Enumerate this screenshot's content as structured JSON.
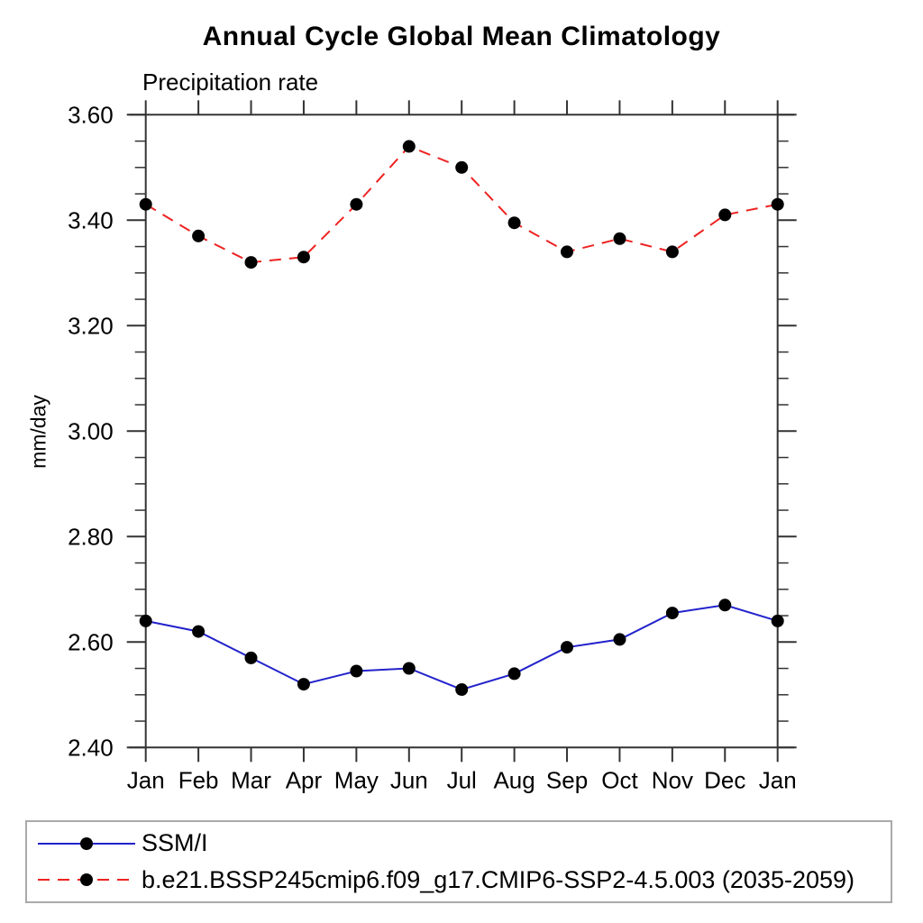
{
  "chart_data": {
    "type": "line",
    "title": "Annual Cycle Global Mean Climatology",
    "subtitle": "Precipitation rate",
    "ylabel": "mm/day",
    "x_tick_labels": [
      "Jan",
      "Feb",
      "Mar",
      "Apr",
      "May",
      "Jun",
      "Jul",
      "Aug",
      "Sep",
      "Oct",
      "Nov",
      "Dec",
      "Jan"
    ],
    "y_axis": {
      "min": 2.4,
      "max": 3.6,
      "major_step": 0.2,
      "minor_step": 0.05,
      "major_tick_labels": [
        "2.40",
        "2.60",
        "2.80",
        "3.00",
        "3.20",
        "3.40",
        "3.60"
      ]
    },
    "grid": false,
    "legend_position": "bottom",
    "series": [
      {
        "name": "SSM/I",
        "color": "#2222cc",
        "line_style": "solid",
        "marker": "filled-circle",
        "marker_color": "#000000",
        "values": [
          2.64,
          2.62,
          2.57,
          2.52,
          2.545,
          2.55,
          2.51,
          2.54,
          2.59,
          2.605,
          2.655,
          2.67,
          2.64
        ]
      },
      {
        "name": "b.e21.BSSP245cmip6.f09_g17.CMIP6-SSP2-4.5.003 (2035-2059)",
        "color": "#ee2222",
        "line_style": "dashed",
        "marker": "filled-circle",
        "marker_color": "#000000",
        "values": [
          3.43,
          3.37,
          3.32,
          3.33,
          3.43,
          3.54,
          3.5,
          3.395,
          3.34,
          3.365,
          3.34,
          3.41,
          3.43
        ]
      }
    ]
  },
  "colors": {
    "axis": "#333333",
    "tick": "#333333",
    "text": "#000000",
    "legend_border": "#aaaaaa"
  }
}
